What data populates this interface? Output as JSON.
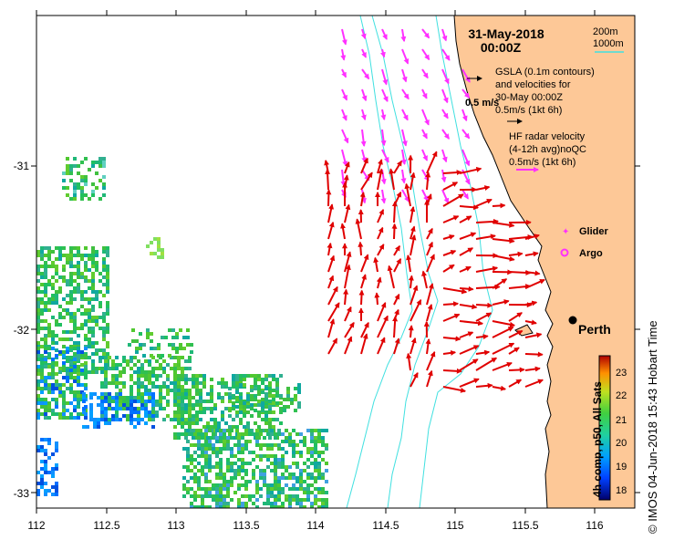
{
  "title": {
    "date": "31-May-2018",
    "time": "00:00Z"
  },
  "depth_legend": {
    "shallow": "200m",
    "deep": "1000m",
    "line_color": "#40e0e0"
  },
  "gsla_legend": {
    "line1": "GSLA (0.1m contours)",
    "line2": "and velocities for",
    "line3": "30-May 00:00Z",
    "speed": "0.5m/s (1kt 6h)",
    "ref_label": "0.5 m/s"
  },
  "hf_legend": {
    "line1": "HF radar velocity",
    "line2": "(4-12h avg)noQC",
    "speed": "0.5m/s (1kt 6h)",
    "arrow_color": "#ff30ff"
  },
  "markers": {
    "glider": "Glider",
    "argo": "Argo",
    "city": "Perth"
  },
  "axes": {
    "x_ticks": [
      "112",
      "112.5",
      "113",
      "113.5",
      "114",
      "114.5",
      "115",
      "115.5",
      "116"
    ],
    "y_ticks": [
      "-31",
      "-32",
      "-33"
    ]
  },
  "colorbar": {
    "ticks": [
      "23",
      "22",
      "21",
      "20",
      "19",
      "18"
    ],
    "label": "4h comp, p50, All Sats"
  },
  "credit": "© IMOS 04-Jun-2018 15:43 Hobart Time",
  "colors": {
    "land": "#fdc897",
    "hf_arrow": "#ff30ff",
    "gsla_arrow": "#e00000",
    "isobath": "#40e0e0"
  }
}
